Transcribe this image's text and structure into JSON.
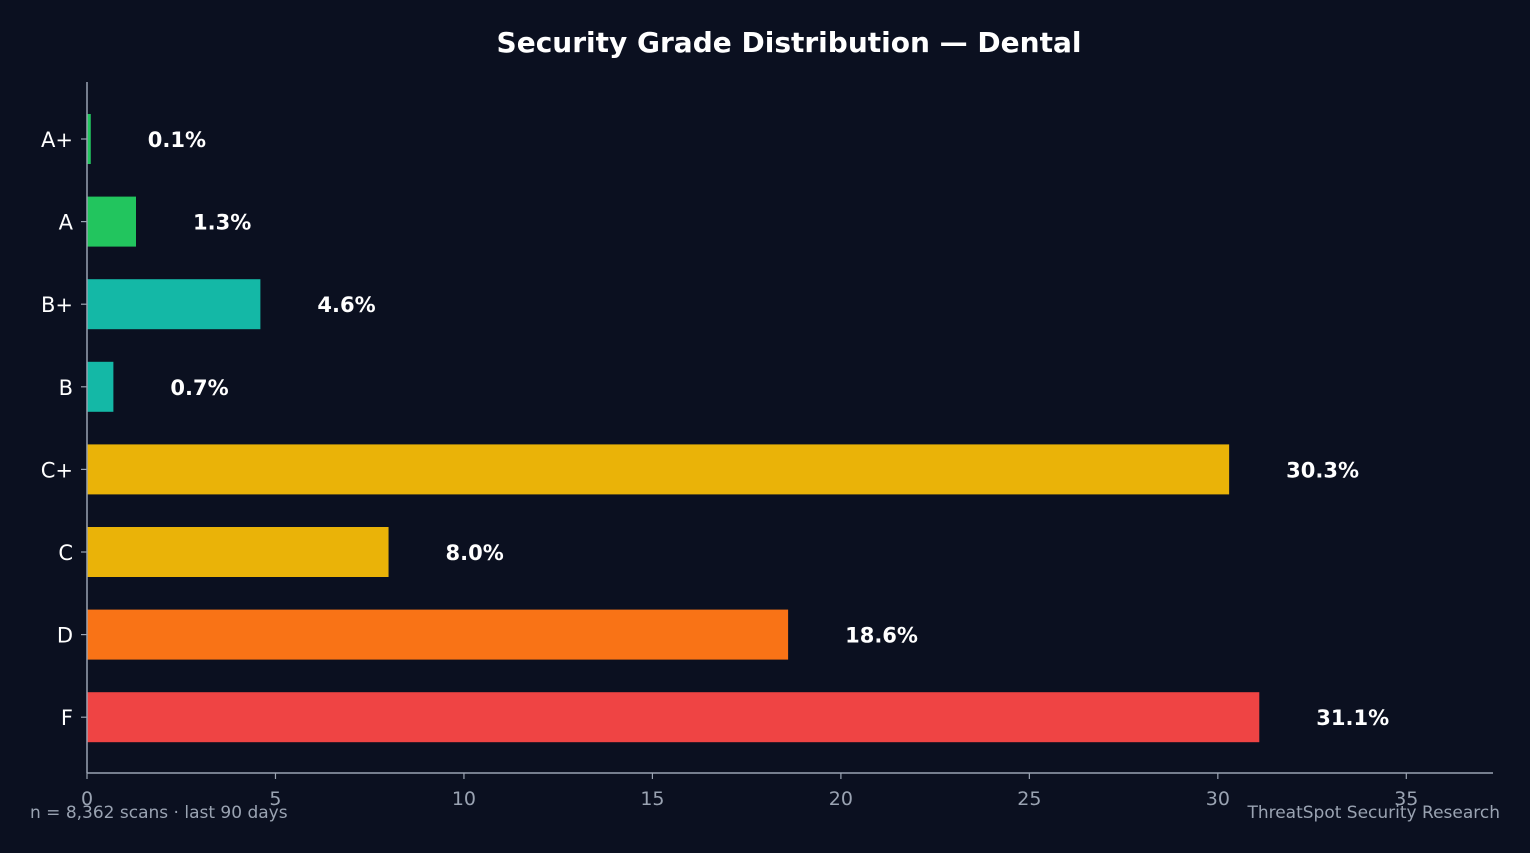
{
  "chart_data": {
    "type": "bar",
    "orientation": "horizontal",
    "title": "Security Grade Distribution — Dental",
    "categories": [
      "A+",
      "A",
      "B+",
      "B",
      "C+",
      "C",
      "D",
      "F"
    ],
    "values": [
      0.1,
      1.3,
      4.6,
      0.7,
      30.3,
      8.0,
      18.6,
      31.1
    ],
    "data_labels": [
      "0.1%",
      "1.3%",
      "4.6%",
      "0.7%",
      "30.3%",
      "8.0%",
      "18.6%",
      "31.1%"
    ],
    "colors": [
      "#22c55e",
      "#22c55e",
      "#14b8a6",
      "#14b8a6",
      "#eab308",
      "#eab308",
      "#f97316",
      "#ef4444"
    ],
    "xticks": [
      0,
      5,
      10,
      15,
      20,
      25,
      30,
      35
    ],
    "xlim": [
      0,
      37.3
    ],
    "xlabel": "",
    "ylabel": "",
    "grid": false,
    "legend": "none"
  },
  "footer": {
    "left": "n = 8,362 scans · last 90 days",
    "right": "ThreatSpot Security Research"
  }
}
